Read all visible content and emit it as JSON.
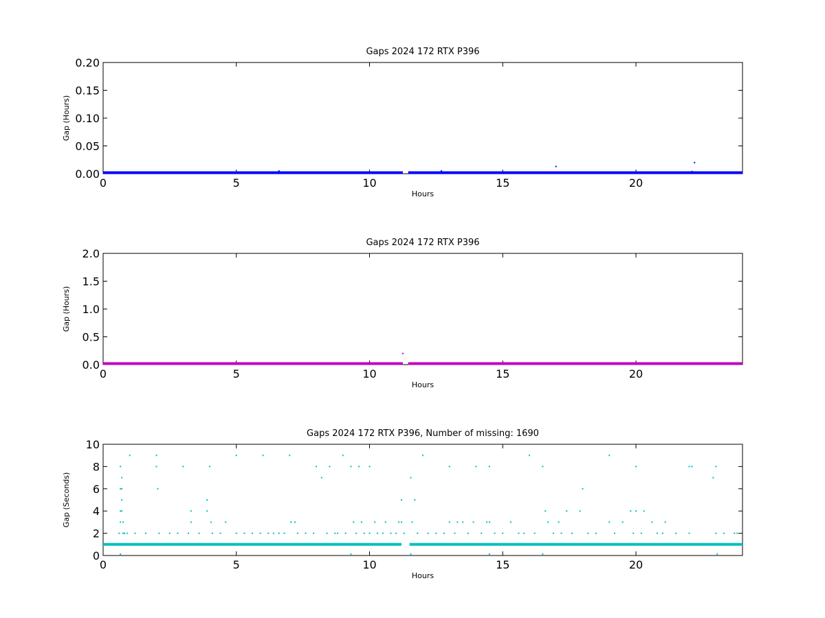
{
  "chart_data": [
    {
      "type": "scatter",
      "title": "Gaps 2024 172 RTX  P396",
      "xlabel": "Hours",
      "ylabel": "Gap (Hours)",
      "xlim": [
        0,
        24
      ],
      "ylim": [
        0,
        0.2
      ],
      "xticks": [
        "0",
        "5",
        "10",
        "15",
        "20"
      ],
      "yticks": [
        "0.00",
        "0.05",
        "0.10",
        "0.15",
        "0.20"
      ],
      "color": "#0000ff",
      "baseline": {
        "value": 0.0,
        "x_ranges": [
          [
            0,
            11.25
          ],
          [
            11.45,
            24
          ]
        ]
      },
      "points": [
        [
          0.65,
          0.003
        ],
        [
          1.0,
          0.002
        ],
        [
          2.0,
          0.002
        ],
        [
          3.0,
          0.002
        ],
        [
          4.0,
          0.002
        ],
        [
          5.0,
          0.002
        ],
        [
          6.0,
          0.002
        ],
        [
          6.6,
          0.005
        ],
        [
          7.0,
          0.002
        ],
        [
          8.0,
          0.002
        ],
        [
          8.5,
          0.002
        ],
        [
          9.0,
          0.002
        ],
        [
          9.3,
          0.002
        ],
        [
          9.6,
          0.002
        ],
        [
          10.0,
          0.003
        ],
        [
          12.0,
          0.002
        ],
        [
          12.7,
          0.005
        ],
        [
          13.0,
          0.002
        ],
        [
          14.0,
          0.002
        ],
        [
          14.5,
          0.002
        ],
        [
          16.0,
          0.002
        ],
        [
          16.5,
          0.002
        ],
        [
          17.0,
          0.013
        ],
        [
          19.0,
          0.002
        ],
        [
          20.0,
          0.002
        ],
        [
          22.0,
          0.003
        ],
        [
          22.1,
          0.004
        ],
        [
          22.2,
          0.02
        ],
        [
          23.0,
          0.002
        ]
      ]
    },
    {
      "type": "scatter",
      "title": "Gaps 2024 172 RTX  P396",
      "xlabel": "Hours",
      "ylabel": "Gap (Hours)",
      "xlim": [
        0,
        24
      ],
      "ylim": [
        0,
        2.0
      ],
      "xticks": [
        "0",
        "5",
        "10",
        "15",
        "20"
      ],
      "yticks": [
        "0.0",
        "0.5",
        "1.0",
        "1.5",
        "2.0"
      ],
      "color": "#bf00bf",
      "baseline": {
        "value": 0.0,
        "x_ranges": [
          [
            0,
            11.25
          ],
          [
            11.45,
            24
          ]
        ]
      },
      "points": [
        [
          11.25,
          0.2
        ]
      ]
    },
    {
      "type": "scatter",
      "title": "Gaps 2024 172 RTX  P396, Number of missing: 1690",
      "xlabel": "Hours",
      "ylabel": "Gap (Seconds)",
      "xlim": [
        0,
        24
      ],
      "ylim": [
        0,
        10
      ],
      "xticks": [
        "0",
        "5",
        "10",
        "15",
        "20"
      ],
      "yticks": [
        "0",
        "2",
        "4",
        "6",
        "8",
        "10"
      ],
      "color": "#00bfbf",
      "baseline": {
        "value": 1,
        "x_ranges": [
          [
            0,
            11.2
          ],
          [
            11.5,
            24
          ]
        ]
      },
      "points": [
        [
          0.6,
          2
        ],
        [
          0.65,
          8
        ],
        [
          0.65,
          3
        ],
        [
          0.65,
          4
        ],
        [
          0.65,
          6
        ],
        [
          0.7,
          7
        ],
        [
          0.7,
          6
        ],
        [
          0.7,
          5
        ],
        [
          0.7,
          4
        ],
        [
          0.75,
          3
        ],
        [
          0.75,
          2
        ],
        [
          0.8,
          2
        ],
        [
          0.65,
          0
        ],
        [
          0.9,
          2
        ],
        [
          1.0,
          9
        ],
        [
          1.2,
          2
        ],
        [
          1.6,
          2
        ],
        [
          2.0,
          9
        ],
        [
          2.0,
          8
        ],
        [
          2.05,
          6
        ],
        [
          2.1,
          2
        ],
        [
          2.5,
          2
        ],
        [
          2.8,
          2
        ],
        [
          3.0,
          8
        ],
        [
          3.2,
          2
        ],
        [
          3.3,
          4
        ],
        [
          3.3,
          3
        ],
        [
          3.6,
          2
        ],
        [
          3.9,
          5
        ],
        [
          3.9,
          4
        ],
        [
          4.0,
          8
        ],
        [
          4.05,
          3
        ],
        [
          4.1,
          2
        ],
        [
          4.4,
          2
        ],
        [
          4.6,
          3
        ],
        [
          5.0,
          9
        ],
        [
          5.0,
          2
        ],
        [
          5.3,
          2
        ],
        [
          5.6,
          2
        ],
        [
          5.9,
          2
        ],
        [
          6.0,
          9
        ],
        [
          6.2,
          2
        ],
        [
          6.4,
          2
        ],
        [
          6.6,
          2
        ],
        [
          6.8,
          2
        ],
        [
          7.0,
          9
        ],
        [
          7.05,
          3
        ],
        [
          7.2,
          3
        ],
        [
          7.3,
          2
        ],
        [
          7.6,
          2
        ],
        [
          7.9,
          2
        ],
        [
          8.0,
          8
        ],
        [
          8.2,
          7
        ],
        [
          8.4,
          2
        ],
        [
          8.5,
          8
        ],
        [
          8.7,
          2
        ],
        [
          8.8,
          2
        ],
        [
          9.0,
          9
        ],
        [
          9.1,
          2
        ],
        [
          9.3,
          8
        ],
        [
          9.3,
          0
        ],
        [
          9.4,
          3
        ],
        [
          9.5,
          2
        ],
        [
          9.6,
          8
        ],
        [
          9.7,
          3
        ],
        [
          9.8,
          2
        ],
        [
          10.0,
          8
        ],
        [
          10.0,
          2
        ],
        [
          10.2,
          3
        ],
        [
          10.3,
          2
        ],
        [
          10.5,
          2
        ],
        [
          10.6,
          3
        ],
        [
          10.8,
          2
        ],
        [
          11.0,
          2
        ],
        [
          11.1,
          3
        ],
        [
          11.2,
          5
        ],
        [
          11.2,
          3
        ],
        [
          11.3,
          2
        ],
        [
          11.55,
          7
        ],
        [
          11.55,
          0
        ],
        [
          11.6,
          3
        ],
        [
          11.7,
          5
        ],
        [
          11.8,
          2
        ],
        [
          12.0,
          9
        ],
        [
          12.2,
          2
        ],
        [
          12.5,
          2
        ],
        [
          12.8,
          2
        ],
        [
          13.0,
          8
        ],
        [
          13.0,
          3
        ],
        [
          13.2,
          2
        ],
        [
          13.3,
          3
        ],
        [
          13.5,
          3
        ],
        [
          13.7,
          2
        ],
        [
          13.9,
          3
        ],
        [
          14.0,
          8
        ],
        [
          14.2,
          2
        ],
        [
          14.4,
          3
        ],
        [
          14.5,
          8
        ],
        [
          14.5,
          3
        ],
        [
          14.5,
          0
        ],
        [
          14.7,
          2
        ],
        [
          15.0,
          2
        ],
        [
          15.3,
          3
        ],
        [
          15.6,
          2
        ],
        [
          15.8,
          2
        ],
        [
          16.0,
          9
        ],
        [
          16.2,
          2
        ],
        [
          16.5,
          8
        ],
        [
          16.5,
          0
        ],
        [
          16.6,
          4
        ],
        [
          16.7,
          3
        ],
        [
          16.9,
          2
        ],
        [
          17.1,
          3
        ],
        [
          17.2,
          2
        ],
        [
          17.4,
          4
        ],
        [
          17.6,
          2
        ],
        [
          17.9,
          4
        ],
        [
          18.0,
          6
        ],
        [
          18.2,
          2
        ],
        [
          18.5,
          2
        ],
        [
          19.0,
          9
        ],
        [
          19.0,
          3
        ],
        [
          19.2,
          2
        ],
        [
          19.5,
          3
        ],
        [
          19.8,
          4
        ],
        [
          19.9,
          2
        ],
        [
          20.0,
          8
        ],
        [
          20.0,
          4
        ],
        [
          20.2,
          2
        ],
        [
          20.3,
          4
        ],
        [
          20.6,
          3
        ],
        [
          20.8,
          2
        ],
        [
          21.0,
          2
        ],
        [
          21.1,
          3
        ],
        [
          21.5,
          2
        ],
        [
          22.0,
          8
        ],
        [
          22.0,
          2
        ],
        [
          22.1,
          8
        ],
        [
          22.9,
          7
        ],
        [
          23.0,
          8
        ],
        [
          23.0,
          2
        ],
        [
          23.05,
          0
        ],
        [
          23.3,
          2
        ],
        [
          23.7,
          2
        ],
        [
          23.8,
          2
        ]
      ]
    }
  ]
}
